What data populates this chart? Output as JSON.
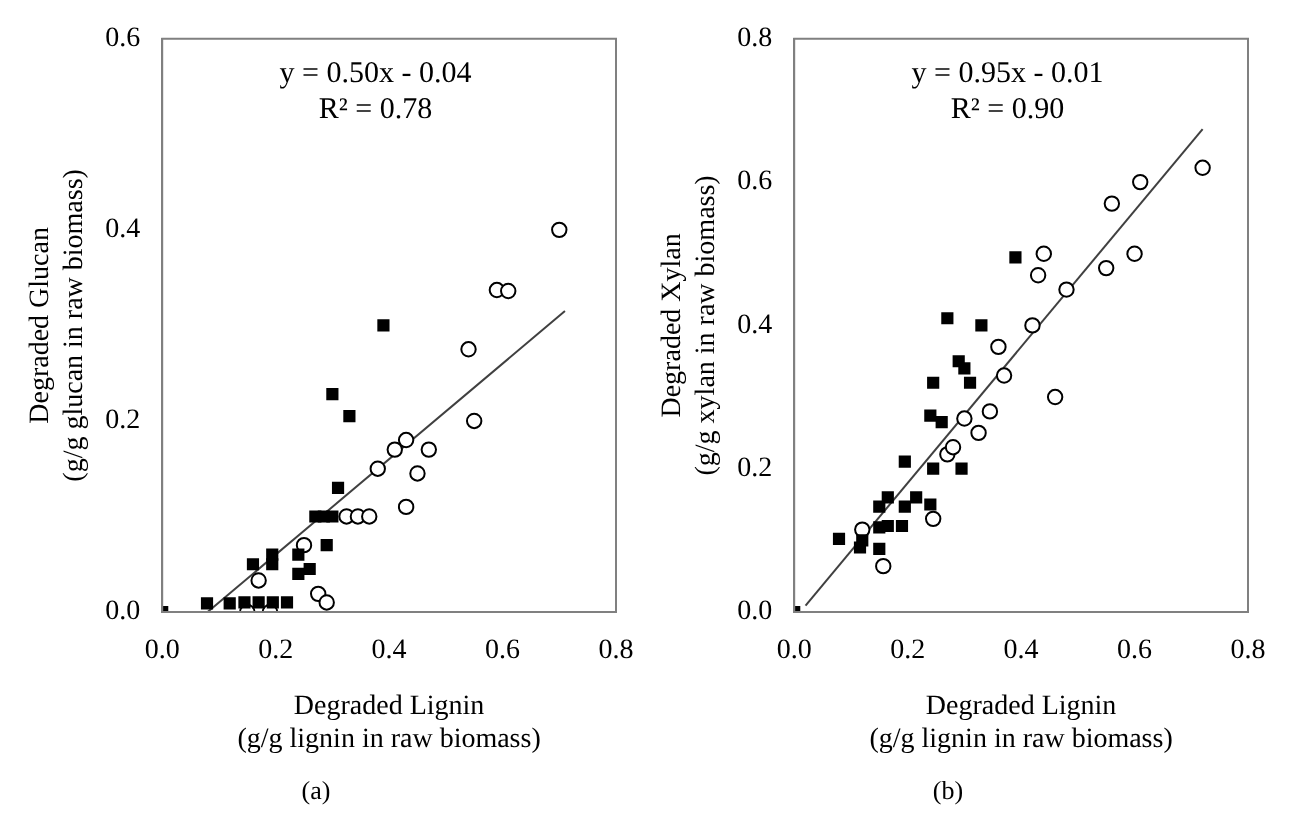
{
  "chart_data": [
    {
      "type": "scatter",
      "title": "(a)",
      "xlabel": "Degraded Lignin\n(g/g lignin in raw biomass)",
      "ylabel": "Degraded Glucan\n(g/g glucan in raw biomass)",
      "annotations": [
        "y = 0.50x - 0.04",
        "R² = 0.78"
      ],
      "xlim": [
        0,
        0.8
      ],
      "ylim": [
        0,
        0.6
      ],
      "xticks": [
        {
          "value": 0,
          "label": "0.0"
        },
        0.2,
        0.4,
        0.6,
        0.8
      ],
      "yticks": [
        {
          "value": 0,
          "label": "0.0"
        },
        0.2,
        0.4,
        0.6
      ],
      "grid": false,
      "legend": false,
      "series": [
        {
          "color": "#000000",
          "marker": "square",
          "x": [
            0,
            0.079,
            0.119,
            0.145,
            0.17,
            0.195,
            0.22,
            0.194,
            0.194,
            0.16,
            0.24,
            0.24,
            0.26,
            0.27,
            0.285,
            0.3,
            0.29,
            0.31,
            0.3,
            0.33,
            0.39
          ],
          "values": [
            0,
            0.009,
            0.009,
            0.01,
            0.01,
            0.01,
            0.01,
            0.06,
            0.05,
            0.05,
            0.06,
            0.04,
            0.045,
            0.1,
            0.1,
            0.1,
            0.07,
            0.13,
            0.228,
            0.205,
            0.3
          ]
        },
        {
          "color": "#000000",
          "marker": "circle",
          "x": [
            0.15,
            0.19,
            0.17,
            0.275,
            0.29,
            0.25,
            0.325,
            0.345,
            0.365,
            0.38,
            0.41,
            0.43,
            0.43,
            0.45,
            0.47,
            0.54,
            0.55,
            0.59,
            0.61,
            0.7
          ],
          "values": [
            0,
            0,
            0.033,
            0.019,
            0.01,
            0.07,
            0.1,
            0.1,
            0.1,
            0.15,
            0.17,
            0.18,
            0.11,
            0.145,
            0.17,
            0.275,
            0.2,
            0.337,
            0.336,
            0.4
          ]
        },
        {
          "type": "line",
          "color": "#404040",
          "marker": "none",
          "x": [
            0.08,
            0.71
          ],
          "values": [
            0,
            0.315
          ]
        }
      ]
    },
    {
      "type": "scatter",
      "title": "(b)",
      "xlabel": "Degraded Lignin\n(g/g lignin in raw biomass)",
      "ylabel": "Degraded Xylan\n(g/g xylan in raw biomass)",
      "annotations": [
        "y = 0.95x - 0.01",
        "R² = 0.90"
      ],
      "xlim": [
        0,
        0.8
      ],
      "ylim": [
        0,
        0.8
      ],
      "xticks": [
        {
          "value": 0,
          "label": "0.0"
        },
        0.2,
        0.4,
        0.6,
        0.8
      ],
      "yticks": [
        {
          "value": 0,
          "label": "0.0"
        },
        0.2,
        0.4,
        0.6,
        0.8
      ],
      "grid": false,
      "legend": false,
      "series": [
        {
          "color": "#000000",
          "marker": "square",
          "x": [
            0,
            0.079,
            0.116,
            0.12,
            0.15,
            0.15,
            0.15,
            0.165,
            0.165,
            0.19,
            0.195,
            0.195,
            0.215,
            0.24,
            0.245,
            0.24,
            0.26,
            0.245,
            0.27,
            0.29,
            0.3,
            0.31,
            0.295,
            0.33,
            0.39
          ],
          "values": [
            0,
            0.102,
            0.09,
            0.1,
            0.088,
            0.118,
            0.147,
            0.16,
            0.12,
            0.12,
            0.147,
            0.21,
            0.16,
            0.15,
            0.2,
            0.274,
            0.265,
            0.32,
            0.41,
            0.35,
            0.34,
            0.32,
            0.2,
            0.4,
            0.495
          ]
        },
        {
          "color": "#000000",
          "marker": "circle",
          "x": [
            0.12,
            0.157,
            0.245,
            0.27,
            0.28,
            0.3,
            0.325,
            0.345,
            0.36,
            0.37,
            0.42,
            0.43,
            0.44,
            0.46,
            0.48,
            0.55,
            0.56,
            0.6,
            0.61,
            0.72
          ],
          "values": [
            0.115,
            0.064,
            0.13,
            0.22,
            0.23,
            0.27,
            0.25,
            0.28,
            0.37,
            0.33,
            0.4,
            0.47,
            0.5,
            0.3,
            0.45,
            0.48,
            0.57,
            0.5,
            0.6,
            0.62
          ]
        },
        {
          "type": "line",
          "color": "#404040",
          "marker": "none",
          "x": [
            0.02,
            0.72
          ],
          "values": [
            0.009,
            0.674
          ]
        }
      ]
    }
  ]
}
